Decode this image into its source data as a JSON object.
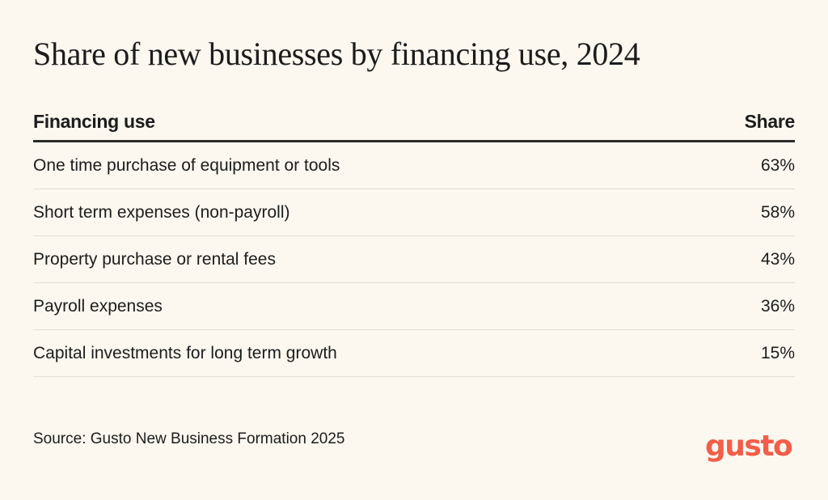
{
  "chart_data": {
    "type": "table",
    "title": "Share of new businesses by financing use, 2024",
    "columns": [
      "Financing use",
      "Share"
    ],
    "rows": [
      {
        "label": "One time purchase of equipment or tools",
        "value": "63%"
      },
      {
        "label": "Short term expenses (non-payroll)",
        "value": "58%"
      },
      {
        "label": "Property purchase or rental fees",
        "value": "43%"
      },
      {
        "label": "Payroll expenses",
        "value": "36%"
      },
      {
        "label": "Capital investments for long term growth",
        "value": "15%"
      }
    ],
    "source": "Source: Gusto New Business Formation 2025"
  },
  "brand": {
    "logo_text": "gusto",
    "logo_color": "#f45d48"
  },
  "colors": {
    "background": "#fcf8f0",
    "text": "#1c1c1c",
    "header_rule": "#2a2a2a",
    "row_rule": "#e3ddd2"
  }
}
